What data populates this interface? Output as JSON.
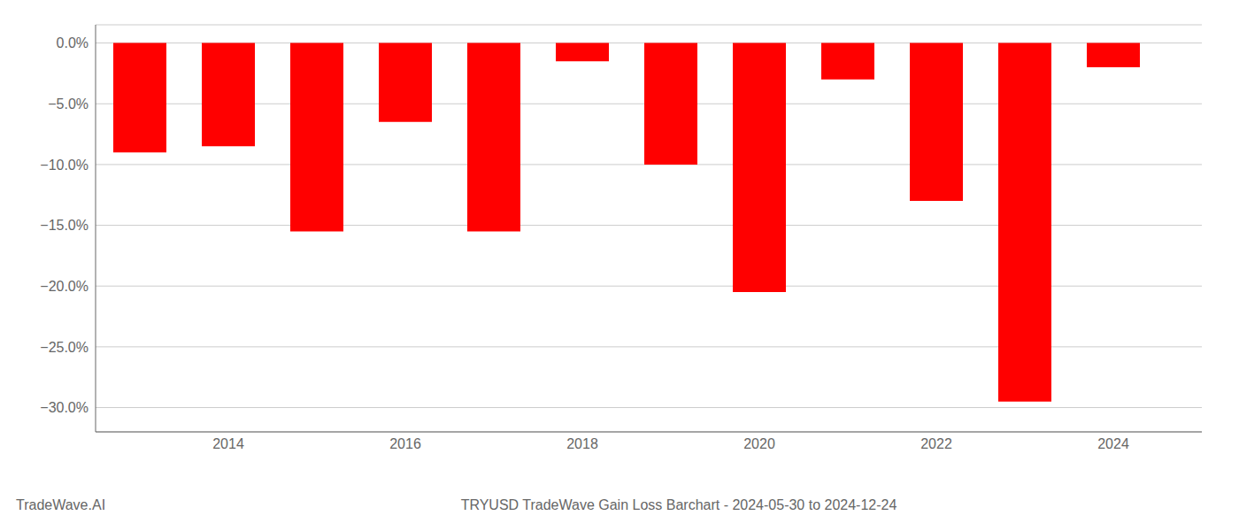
{
  "chart_data": {
    "type": "bar",
    "title": "TRYUSD TradeWave Gain Loss Barchart - 2024-05-30 to 2024-12-24",
    "annotations": [
      "TradeWave.AI"
    ],
    "x": [
      2013,
      2014,
      2015,
      2016,
      2017,
      2018,
      2019,
      2020,
      2021,
      2022,
      2023,
      2024
    ],
    "values": [
      -9.0,
      -8.5,
      -15.5,
      -6.5,
      -15.5,
      -1.5,
      -10.0,
      -20.5,
      -3.0,
      -13.0,
      -29.5,
      -2.0
    ],
    "color": "#ff0000",
    "xlim": [
      2012.5,
      2025.0
    ],
    "xticks": [
      2014,
      2016,
      2018,
      2020,
      2022,
      2024
    ],
    "ylim": [
      -32,
      1.5
    ],
    "yticks": [
      {
        "value": 0.0,
        "label": "0.0%"
      },
      {
        "value": -5.0,
        "label": "−5.0%"
      },
      {
        "value": -10.0,
        "label": "−10.0%"
      },
      {
        "value": -15.0,
        "label": "−15.0%"
      },
      {
        "value": -20.0,
        "label": "−20.0%"
      },
      {
        "value": -25.0,
        "label": "−25.0%"
      },
      {
        "value": -30.0,
        "label": "−30.0%"
      }
    ],
    "grid": true
  }
}
